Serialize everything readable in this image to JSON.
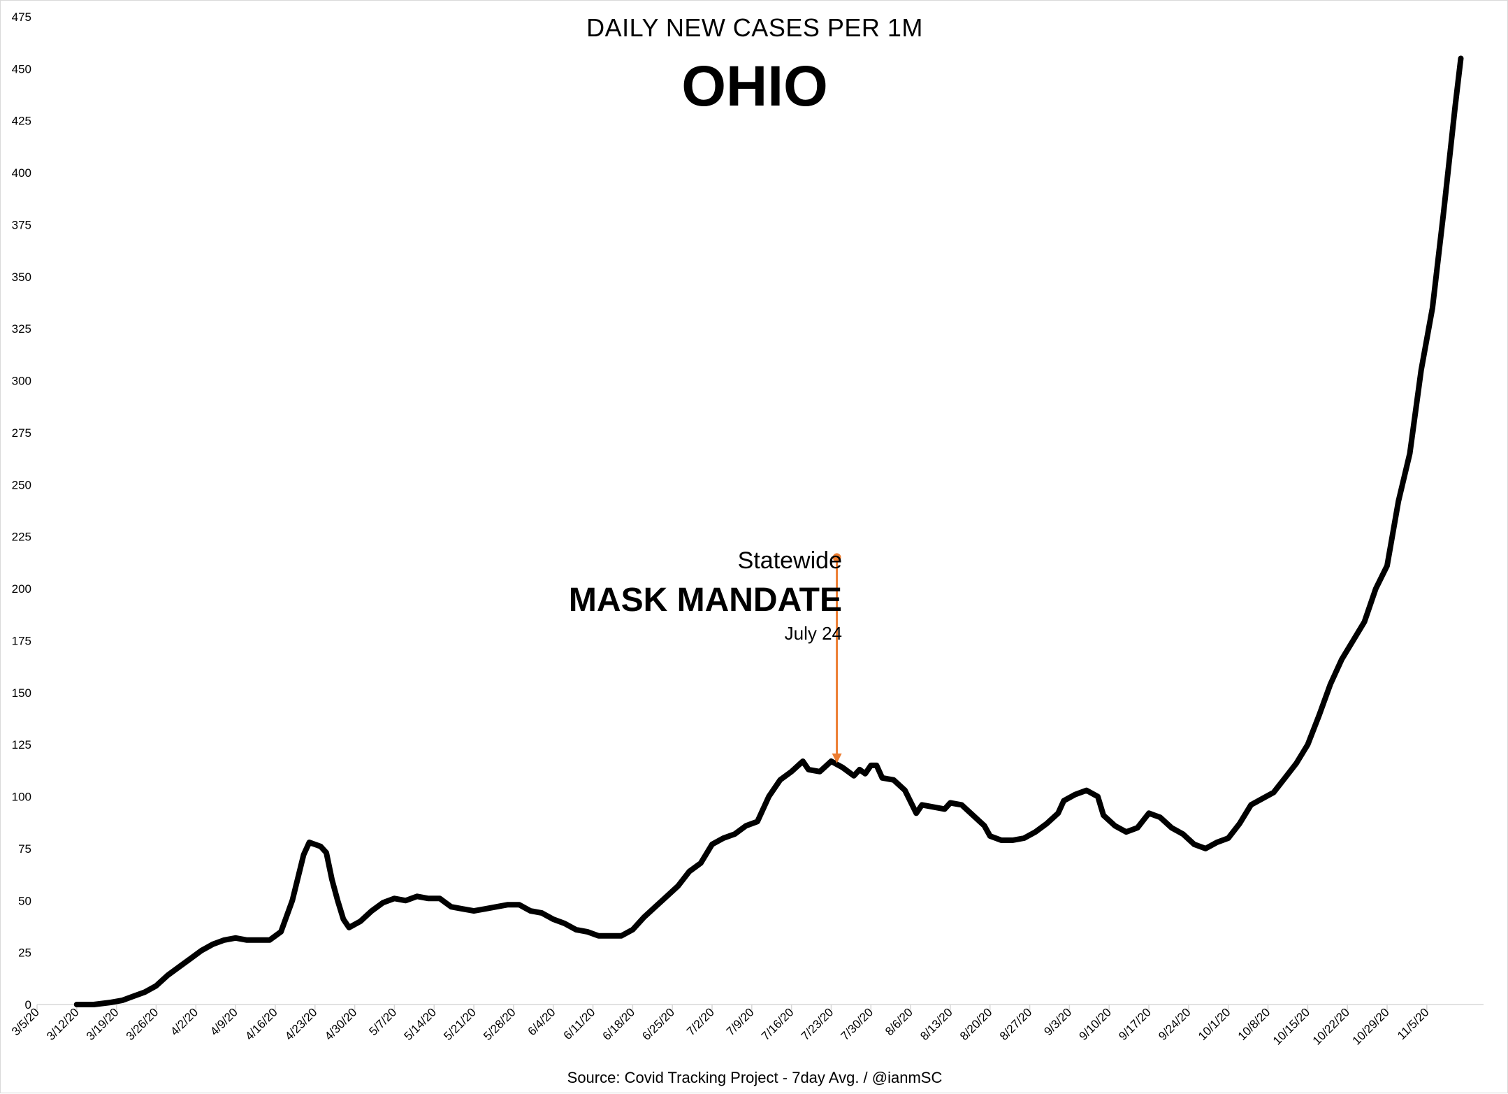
{
  "chart_data": {
    "type": "line",
    "title": "OHIO",
    "subtitle": "DAILY NEW CASES PER 1M",
    "source": "Source: Covid Tracking Project - 7day Avg. / @ianmSC",
    "ylim": [
      0,
      475
    ],
    "yticks": [
      0,
      25,
      50,
      75,
      100,
      125,
      150,
      175,
      200,
      225,
      250,
      275,
      300,
      325,
      350,
      375,
      400,
      425,
      450,
      475
    ],
    "x_tick_labels": [
      "3/5/20",
      "3/12/20",
      "3/19/20",
      "3/26/20",
      "4/2/20",
      "4/9/20",
      "4/16/20",
      "4/23/20",
      "4/30/20",
      "5/7/20",
      "5/14/20",
      "5/21/20",
      "5/28/20",
      "6/4/20",
      "6/11/20",
      "6/18/20",
      "6/25/20",
      "7/2/20",
      "7/9/20",
      "7/16/20",
      "7/23/20",
      "7/30/20",
      "8/6/20",
      "8/13/20",
      "8/20/20",
      "8/27/20",
      "9/3/20",
      "9/10/20",
      "9/17/20",
      "9/24/20",
      "10/1/20",
      "10/8/20",
      "10/15/20",
      "10/22/20",
      "10/29/20",
      "11/5/20"
    ],
    "grid": false,
    "legend": "none",
    "line_color": "#000000",
    "series": [
      {
        "points": [
          [
            "3/12/20",
            0
          ],
          [
            "3/15/20",
            0
          ],
          [
            "3/18/20",
            1
          ],
          [
            "3/20/20",
            2
          ],
          [
            "3/22/20",
            4
          ],
          [
            "3/24/20",
            6
          ],
          [
            "3/26/20",
            9
          ],
          [
            "3/28/20",
            14
          ],
          [
            "3/30/20",
            18
          ],
          [
            "4/1/20",
            22
          ],
          [
            "4/3/20",
            26
          ],
          [
            "4/5/20",
            29
          ],
          [
            "4/7/20",
            31
          ],
          [
            "4/9/20",
            32
          ],
          [
            "4/11/20",
            31
          ],
          [
            "4/13/20",
            31
          ],
          [
            "4/15/20",
            31
          ],
          [
            "4/17/20",
            35
          ],
          [
            "4/19/20",
            50
          ],
          [
            "4/21/20",
            72
          ],
          [
            "4/22/20",
            78
          ],
          [
            "4/24/20",
            76
          ],
          [
            "4/25/20",
            73
          ],
          [
            "4/26/20",
            60
          ],
          [
            "4/27/20",
            50
          ],
          [
            "4/28/20",
            41
          ],
          [
            "4/29/20",
            37
          ],
          [
            "5/1/20",
            40
          ],
          [
            "5/3/20",
            45
          ],
          [
            "5/5/20",
            49
          ],
          [
            "5/7/20",
            51
          ],
          [
            "5/9/20",
            50
          ],
          [
            "5/11/20",
            52
          ],
          [
            "5/13/20",
            51
          ],
          [
            "5/15/20",
            51
          ],
          [
            "5/17/20",
            47
          ],
          [
            "5/19/20",
            46
          ],
          [
            "5/21/20",
            45
          ],
          [
            "5/23/20",
            46
          ],
          [
            "5/25/20",
            47
          ],
          [
            "5/27/20",
            48
          ],
          [
            "5/29/20",
            48
          ],
          [
            "5/31/20",
            45
          ],
          [
            "6/2/20",
            44
          ],
          [
            "6/4/20",
            41
          ],
          [
            "6/6/20",
            39
          ],
          [
            "6/8/20",
            36
          ],
          [
            "6/10/20",
            35
          ],
          [
            "6/12/20",
            33
          ],
          [
            "6/14/20",
            33
          ],
          [
            "6/16/20",
            33
          ],
          [
            "6/18/20",
            36
          ],
          [
            "6/20/20",
            42
          ],
          [
            "6/22/20",
            47
          ],
          [
            "6/24/20",
            52
          ],
          [
            "6/26/20",
            57
          ],
          [
            "6/28/20",
            64
          ],
          [
            "6/30/20",
            68
          ],
          [
            "7/2/20",
            77
          ],
          [
            "7/4/20",
            80
          ],
          [
            "7/6/20",
            82
          ],
          [
            "7/8/20",
            86
          ],
          [
            "7/10/20",
            88
          ],
          [
            "7/12/20",
            100
          ],
          [
            "7/14/20",
            108
          ],
          [
            "7/16/20",
            112
          ],
          [
            "7/18/20",
            117
          ],
          [
            "7/19/20",
            113
          ],
          [
            "7/21/20",
            112
          ],
          [
            "7/23/20",
            117
          ],
          [
            "7/25/20",
            114
          ],
          [
            "7/27/20",
            110
          ],
          [
            "7/28/20",
            113
          ],
          [
            "7/29/20",
            111
          ],
          [
            "7/30/20",
            115
          ],
          [
            "7/31/20",
            115
          ],
          [
            "8/1/20",
            109
          ],
          [
            "8/3/20",
            108
          ],
          [
            "8/5/20",
            103
          ],
          [
            "8/7/20",
            92
          ],
          [
            "8/8/20",
            96
          ],
          [
            "8/10/20",
            95
          ],
          [
            "8/12/20",
            94
          ],
          [
            "8/13/20",
            97
          ],
          [
            "8/15/20",
            96
          ],
          [
            "8/17/20",
            91
          ],
          [
            "8/19/20",
            86
          ],
          [
            "8/20/20",
            81
          ],
          [
            "8/22/20",
            79
          ],
          [
            "8/24/20",
            79
          ],
          [
            "8/26/20",
            80
          ],
          [
            "8/28/20",
            83
          ],
          [
            "8/30/20",
            87
          ],
          [
            "9/1/20",
            92
          ],
          [
            "9/2/20",
            98
          ],
          [
            "9/4/20",
            101
          ],
          [
            "9/6/20",
            103
          ],
          [
            "9/8/20",
            100
          ],
          [
            "9/9/20",
            91
          ],
          [
            "9/11/20",
            86
          ],
          [
            "9/13/20",
            83
          ],
          [
            "9/15/20",
            85
          ],
          [
            "9/17/20",
            92
          ],
          [
            "9/19/20",
            90
          ],
          [
            "9/21/20",
            85
          ],
          [
            "9/23/20",
            82
          ],
          [
            "9/25/20",
            77
          ],
          [
            "9/27/20",
            75
          ],
          [
            "9/29/20",
            78
          ],
          [
            "10/1/20",
            80
          ],
          [
            "10/3/20",
            87
          ],
          [
            "10/5/20",
            96
          ],
          [
            "10/7/20",
            99
          ],
          [
            "10/9/20",
            102
          ],
          [
            "10/11/20",
            109
          ],
          [
            "10/13/20",
            116
          ],
          [
            "10/15/20",
            125
          ],
          [
            "10/17/20",
            139
          ],
          [
            "10/19/20",
            154
          ],
          [
            "10/21/20",
            166
          ],
          [
            "10/23/20",
            175
          ],
          [
            "10/25/20",
            184
          ],
          [
            "10/27/20",
            200
          ],
          [
            "10/29/20",
            211
          ],
          [
            "10/31/20",
            242
          ],
          [
            "11/2/20",
            265
          ],
          [
            "11/4/20",
            305
          ],
          [
            "11/6/20",
            335
          ],
          [
            "11/8/20",
            382
          ],
          [
            "11/10/20",
            432
          ],
          [
            "11/11/20",
            455
          ]
        ]
      }
    ],
    "annotation": {
      "line1": "Statewide",
      "line2": "MASK MANDATE",
      "line3": "July 24",
      "date": "7/24/20",
      "arrow_from_value": 215,
      "arrow_to_value": 116,
      "arrow_color": "#ed7d31"
    }
  }
}
